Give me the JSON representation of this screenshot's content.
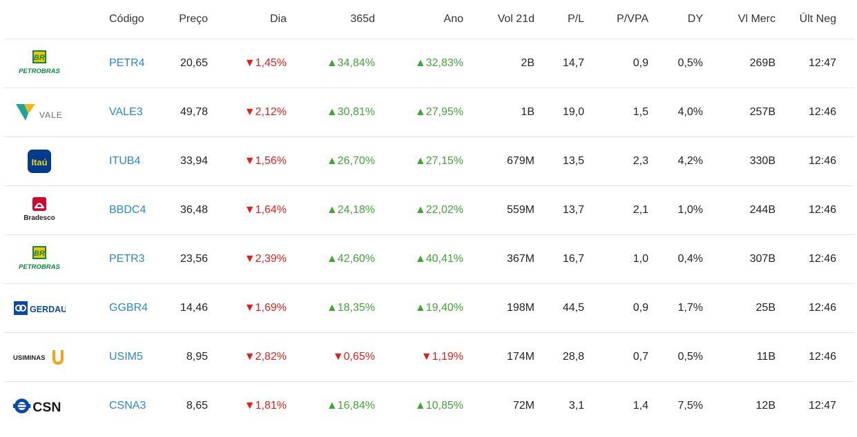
{
  "headers": [
    "Código",
    "Preço",
    "Dia",
    "365d",
    "Ano",
    "Vol 21d",
    "P/L",
    "P/VPA",
    "DY",
    "Vl Merc",
    "Últ Neg"
  ],
  "colors": {
    "link": "#2a87d0",
    "down": "#e0201b",
    "up": "#3fa535"
  },
  "rows": [
    {
      "logo": "petrobras-logo",
      "logo_text": "PETROBRAS",
      "code": "PETR4",
      "price": "20,65",
      "dia": "▼1,45%",
      "dia_dir": "dn",
      "d365": "▲34,84%",
      "d365_dir": "up",
      "ano": "▲32,83%",
      "ano_dir": "up",
      "vol": "2B",
      "pl": "14,7",
      "pvpa": "0,9",
      "dy": "0,5%",
      "vmerc": "269B",
      "ult": "12:47"
    },
    {
      "logo": "vale-logo",
      "logo_text": "VALE",
      "code": "VALE3",
      "price": "49,78",
      "dia": "▼2,12%",
      "dia_dir": "dn",
      "d365": "▲30,81%",
      "d365_dir": "up",
      "ano": "▲27,95%",
      "ano_dir": "up",
      "vol": "1B",
      "pl": "19,0",
      "pvpa": "1,5",
      "dy": "4,0%",
      "vmerc": "257B",
      "ult": "12:46"
    },
    {
      "logo": "itau-logo",
      "logo_text": "Itaú",
      "code": "ITUB4",
      "price": "33,94",
      "dia": "▼1,56%",
      "dia_dir": "dn",
      "d365": "▲26,70%",
      "d365_dir": "up",
      "ano": "▲27,15%",
      "ano_dir": "up",
      "vol": "679M",
      "pl": "13,5",
      "pvpa": "2,3",
      "dy": "4,2%",
      "vmerc": "330B",
      "ult": "12:46"
    },
    {
      "logo": "bradesco-logo",
      "logo_text": "Bradesco",
      "code": "BBDC4",
      "price": "36,48",
      "dia": "▼1,64%",
      "dia_dir": "dn",
      "d365": "▲24,18%",
      "d365_dir": "up",
      "ano": "▲22,02%",
      "ano_dir": "up",
      "vol": "559M",
      "pl": "13,7",
      "pvpa": "2,1",
      "dy": "1,0%",
      "vmerc": "244B",
      "ult": "12:46"
    },
    {
      "logo": "petrobras-logo",
      "logo_text": "PETROBRAS",
      "code": "PETR3",
      "price": "23,56",
      "dia": "▼2,39%",
      "dia_dir": "dn",
      "d365": "▲42,60%",
      "d365_dir": "up",
      "ano": "▲40,41%",
      "ano_dir": "up",
      "vol": "367M",
      "pl": "16,7",
      "pvpa": "1,0",
      "dy": "0,4%",
      "vmerc": "307B",
      "ult": "12:46"
    },
    {
      "logo": "gerdau-logo",
      "logo_text": "GERDAU",
      "code": "GGBR4",
      "price": "14,46",
      "dia": "▼1,69%",
      "dia_dir": "dn",
      "d365": "▲18,35%",
      "d365_dir": "up",
      "ano": "▲19,40%",
      "ano_dir": "up",
      "vol": "198M",
      "pl": "44,5",
      "pvpa": "0,9",
      "dy": "1,7%",
      "vmerc": "25B",
      "ult": "12:46"
    },
    {
      "logo": "usiminas-logo",
      "logo_text": "USIMINAS",
      "code": "USIM5",
      "price": "8,95",
      "dia": "▼2,82%",
      "dia_dir": "dn",
      "d365": "▼0,65%",
      "d365_dir": "dn",
      "ano": "▼1,19%",
      "ano_dir": "dn",
      "vol": "174M",
      "pl": "28,8",
      "pvpa": "0,7",
      "dy": "0,5%",
      "vmerc": "11B",
      "ult": "12:46"
    },
    {
      "logo": "csn-logo",
      "logo_text": "CSN",
      "code": "CSNA3",
      "price": "8,65",
      "dia": "▼1,81%",
      "dia_dir": "dn",
      "d365": "▲16,84%",
      "d365_dir": "up",
      "ano": "▲10,85%",
      "ano_dir": "up",
      "vol": "72M",
      "pl": "3,1",
      "pvpa": "1,4",
      "dy": "7,5%",
      "vmerc": "12B",
      "ult": "12:47"
    }
  ]
}
